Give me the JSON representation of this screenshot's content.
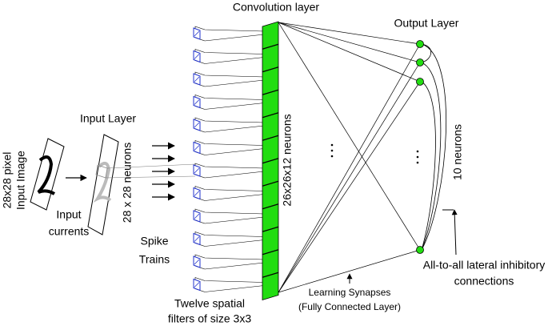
{
  "labels": {
    "convolution_layer": "Convolution layer",
    "output_layer": "Output Layer",
    "input_layer": "Input Layer",
    "input_image": [
      "28x28 pixel",
      "Input Image"
    ],
    "input_currents": [
      "Input",
      "currents"
    ],
    "input_neurons": "28 x 28 neurons",
    "conv_neurons": "26x26x12 neurons",
    "output_neurons": "10 neurons",
    "spike_trains": [
      "Spike",
      "Trains"
    ],
    "filters": [
      "Twelve spatial",
      "filters of size 3x3"
    ],
    "learning_synapses": [
      "Learning Synapses",
      "(Fully Connected Layer)"
    ],
    "lateral_inhibition": [
      "All-to-all lateral inhibitory",
      "connections"
    ]
  }
}
